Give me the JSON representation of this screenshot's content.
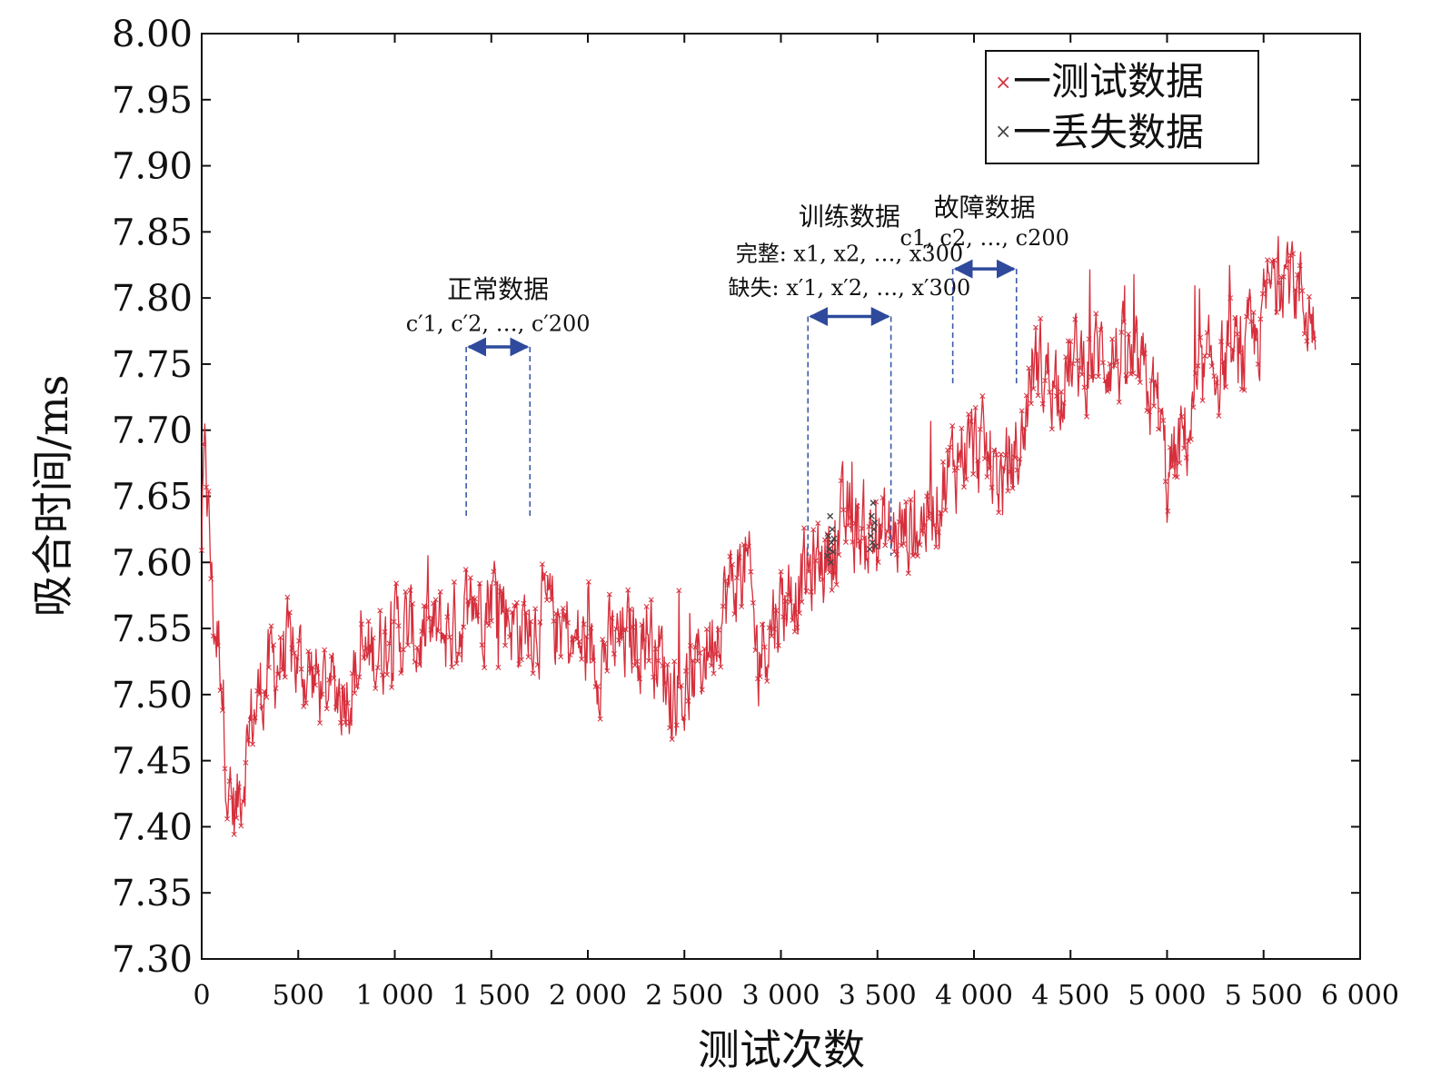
{
  "chart_data": {
    "type": "line",
    "xlabel": "测试次数",
    "ylabel": "吸合时间/ms",
    "xlim": [
      0,
      6000
    ],
    "ylim": [
      7.3,
      8.0
    ],
    "x_ticks": [
      0,
      500,
      1000,
      1500,
      2000,
      2500,
      3000,
      3500,
      4000,
      4500,
      5000,
      5500,
      6000
    ],
    "x_tick_labels": [
      "0",
      "500",
      "1 000",
      "1 500",
      "2 000",
      "2 500",
      "3 000",
      "3 500",
      "4 000",
      "4 500",
      "5 000",
      "5 500",
      "6 000"
    ],
    "y_ticks": [
      7.3,
      7.35,
      7.4,
      7.45,
      7.5,
      7.55,
      7.6,
      7.65,
      7.7,
      7.75,
      7.8,
      7.85,
      7.9,
      7.95,
      8.0
    ],
    "y_tick_labels": [
      "7.30",
      "7.35",
      "7.40",
      "7.45",
      "7.50",
      "7.55",
      "7.60",
      "7.65",
      "7.70",
      "7.75",
      "7.80",
      "7.85",
      "7.90",
      "7.95",
      "8.00"
    ],
    "grid": false,
    "legend_position": "top-right",
    "series": [
      {
        "name": "测试数据",
        "color": "#d62f3c",
        "marker": "x",
        "trend_anchors": [
          [
            0,
            7.62
          ],
          [
            20,
            7.68
          ],
          [
            60,
            7.56
          ],
          [
            100,
            7.53
          ],
          [
            140,
            7.42
          ],
          [
            180,
            7.41
          ],
          [
            240,
            7.47
          ],
          [
            320,
            7.51
          ],
          [
            420,
            7.53
          ],
          [
            540,
            7.52
          ],
          [
            640,
            7.5
          ],
          [
            760,
            7.51
          ],
          [
            880,
            7.53
          ],
          [
            1000,
            7.55
          ],
          [
            1150,
            7.54
          ],
          [
            1300,
            7.55
          ],
          [
            1420,
            7.57
          ],
          [
            1520,
            7.58
          ],
          [
            1640,
            7.55
          ],
          [
            1780,
            7.56
          ],
          [
            1920,
            7.54
          ],
          [
            2050,
            7.53
          ],
          [
            2200,
            7.54
          ],
          [
            2320,
            7.55
          ],
          [
            2420,
            7.51
          ],
          [
            2500,
            7.5
          ],
          [
            2600,
            7.53
          ],
          [
            2700,
            7.57
          ],
          [
            2820,
            7.6
          ],
          [
            2880,
            7.53
          ],
          [
            2960,
            7.56
          ],
          [
            3050,
            7.58
          ],
          [
            3150,
            7.59
          ],
          [
            3250,
            7.61
          ],
          [
            3350,
            7.63
          ],
          [
            3480,
            7.62
          ],
          [
            3600,
            7.62
          ],
          [
            3720,
            7.63
          ],
          [
            3850,
            7.66
          ],
          [
            3950,
            7.69
          ],
          [
            4050,
            7.68
          ],
          [
            4150,
            7.66
          ],
          [
            4250,
            7.69
          ],
          [
            4300,
            7.75
          ],
          [
            4420,
            7.74
          ],
          [
            4550,
            7.75
          ],
          [
            4700,
            7.76
          ],
          [
            4850,
            7.74
          ],
          [
            4950,
            7.72
          ],
          [
            5000,
            7.66
          ],
          [
            5080,
            7.69
          ],
          [
            5150,
            7.72
          ],
          [
            5250,
            7.75
          ],
          [
            5350,
            7.75
          ],
          [
            5450,
            7.76
          ],
          [
            5520,
            7.8
          ],
          [
            5600,
            7.83
          ],
          [
            5700,
            7.8
          ],
          [
            5770,
            7.78
          ]
        ],
        "noise_amplitude": 0.035,
        "sample_step": 4
      },
      {
        "name": "丢失数据",
        "color": "#444444",
        "marker": "x",
        "points": [
          [
            3240,
            7.605
          ],
          [
            3245,
            7.62
          ],
          [
            3250,
            7.61
          ],
          [
            3255,
            7.635
          ],
          [
            3258,
            7.6
          ],
          [
            3262,
            7.615
          ],
          [
            3266,
            7.625
          ],
          [
            3270,
            7.608
          ],
          [
            3275,
            7.618
          ],
          [
            3460,
            7.61
          ],
          [
            3465,
            7.62
          ],
          [
            3470,
            7.635
          ],
          [
            3474,
            7.615
          ],
          [
            3478,
            7.645
          ],
          [
            3482,
            7.625
          ],
          [
            3486,
            7.63
          ],
          [
            3490,
            7.612
          ]
        ]
      }
    ],
    "annotations": [
      {
        "title": "正常数据",
        "sub": "c′1, c′2, …, c′200",
        "x_range": [
          1370,
          1700
        ],
        "arrow_y": 7.763,
        "line_bottom_y": 7.635,
        "title_y": 7.8,
        "sub_y": 7.775
      },
      {
        "title": "训练数据",
        "sub": "完整: x1, x2, …, x300",
        "sub2": "缺失: x′1, x′2, …, x′300",
        "x_range": [
          3140,
          3570
        ],
        "arrow_y": 7.786,
        "line_bottom_y": 7.605,
        "title_y": 7.855,
        "sub_y": 7.828,
        "sub2_y": 7.802
      },
      {
        "title": "故障数据",
        "sub": "c1, c2, …, c200",
        "x_range": [
          3890,
          4220
        ],
        "arrow_y": 7.822,
        "line_bottom_y": 7.735,
        "title_y": 7.862,
        "sub_y": 7.84
      }
    ]
  },
  "legend": {
    "items": [
      {
        "label": "一测试数据",
        "color": "#d62f3c"
      },
      {
        "label": "一丢失数据",
        "color": "#444444"
      }
    ]
  },
  "colors": {
    "series_main": "#d62f3c",
    "series_missing": "#444444",
    "annotation_arrow": "#2f4a9c",
    "annotation_dash": "#3a5aa8"
  }
}
